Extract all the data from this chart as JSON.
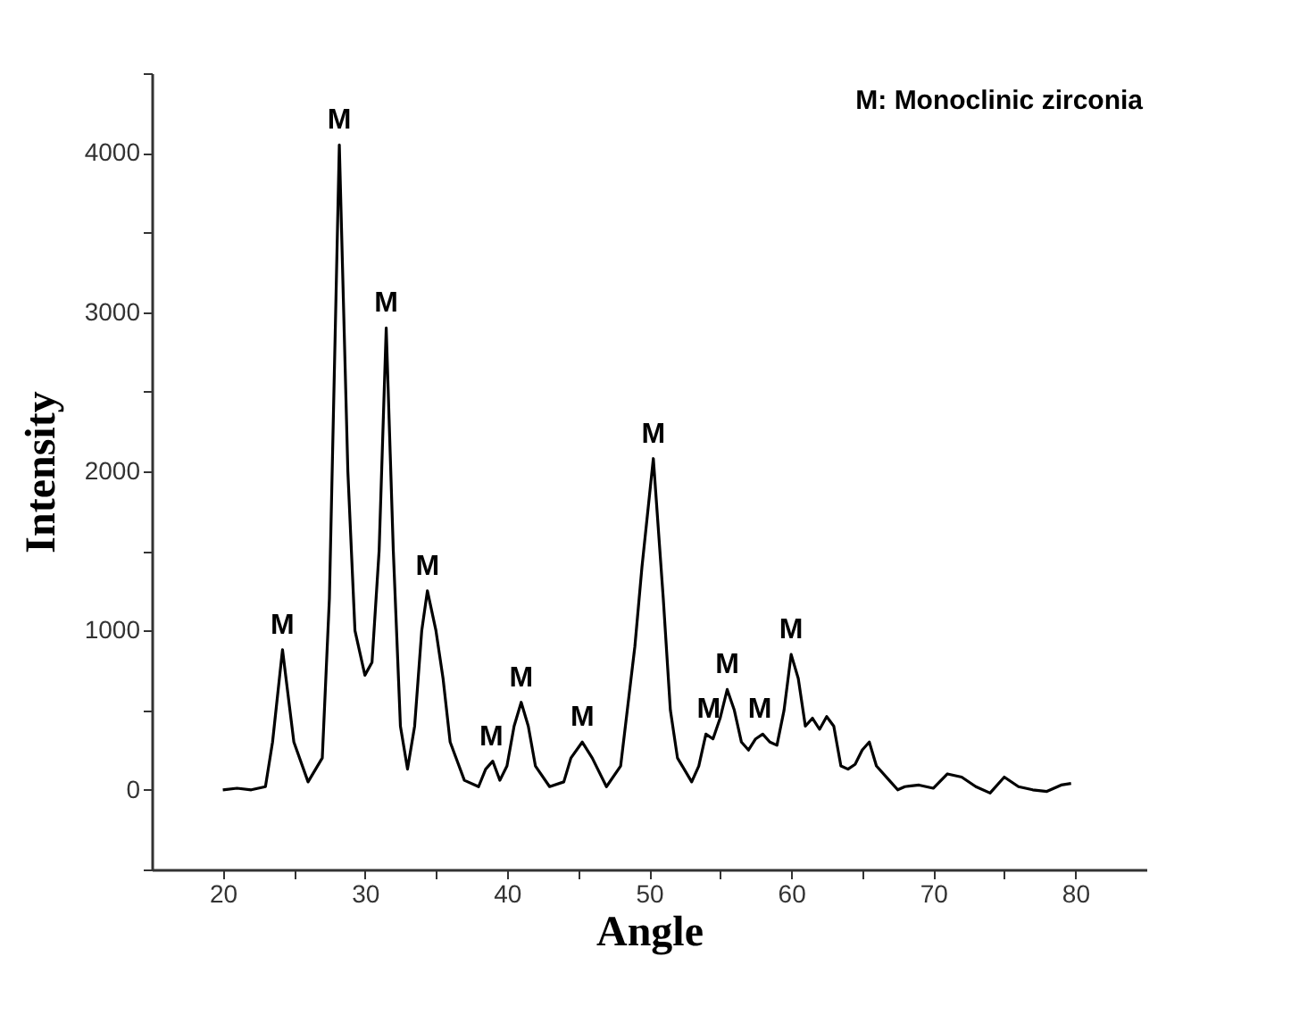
{
  "chart_data": {
    "type": "line",
    "xlabel": "Angle",
    "ylabel": "Intensity",
    "x": [
      20,
      21,
      22,
      23,
      23.5,
      24.2,
      25,
      26,
      27,
      27.5,
      28.2,
      28.8,
      29.3,
      30,
      30.5,
      31,
      31.5,
      32,
      32.5,
      33,
      33.5,
      34,
      34.4,
      35,
      35.5,
      36,
      37,
      38,
      38.5,
      39,
      39.5,
      40,
      40.5,
      41,
      41.5,
      42,
      43,
      44,
      44.5,
      45.3,
      46,
      47,
      48,
      49,
      49.5,
      50.3,
      51,
      51.5,
      52,
      53,
      53.5,
      54,
      54.5,
      55,
      55.5,
      56,
      56.5,
      57,
      57.5,
      58,
      58.5,
      59,
      59.5,
      60,
      60.5,
      61,
      61.5,
      62,
      62.5,
      63,
      63.5,
      64,
      64.5,
      65,
      65.5,
      66,
      67,
      67.5,
      68,
      69,
      70,
      71,
      72,
      73,
      74,
      75,
      76,
      77,
      78,
      79,
      79.7
    ],
    "series": [
      {
        "color": "#000000",
        "values": [
          0,
          10,
          0,
          20,
          300,
          880,
          300,
          50,
          200,
          1200,
          4050,
          2000,
          1000,
          720,
          800,
          1500,
          2900,
          1500,
          400,
          130,
          400,
          1000,
          1250,
          1000,
          700,
          300,
          60,
          20,
          130,
          180,
          60,
          150,
          400,
          550,
          400,
          150,
          20,
          50,
          200,
          300,
          200,
          20,
          150,
          900,
          1400,
          2080,
          1200,
          500,
          200,
          50,
          150,
          350,
          320,
          450,
          630,
          500,
          300,
          250,
          320,
          350,
          300,
          280,
          500,
          850,
          700,
          400,
          450,
          380,
          460,
          400,
          150,
          130,
          160,
          250,
          300,
          150,
          50,
          0,
          20,
          30,
          10,
          100,
          80,
          20,
          -20,
          80,
          20,
          0,
          -10,
          30,
          40
        ]
      }
    ],
    "xlim": [
      15,
      85
    ],
    "ylim": [
      -500,
      4500
    ],
    "xticks": [
      20,
      {
        "value": 25,
        "label": null
      },
      30,
      {
        "value": 35,
        "label": null
      },
      40,
      {
        "value": 45,
        "label": null
      },
      50,
      {
        "value": 55,
        "label": null
      },
      60,
      {
        "value": 65,
        "label": null
      },
      70,
      {
        "value": 75,
        "label": null
      },
      80
    ],
    "yticks": [
      {
        "value": -500,
        "label": null
      },
      0,
      {
        "value": 500,
        "label": null
      },
      1000,
      {
        "value": 1500,
        "label": null
      },
      2000,
      {
        "value": 2500,
        "label": null
      },
      3000,
      {
        "value": 3500,
        "label": null
      },
      4000,
      {
        "value": 4500,
        "label": null
      }
    ],
    "grid": false,
    "legend": false,
    "marker": "none",
    "line_style": "solid",
    "annotations": [
      "M: Monoclinic zirconia",
      {
        "text": "M",
        "x": 24.2,
        "y": 880
      },
      {
        "text": "M",
        "x": 28.2,
        "y": 4050
      },
      {
        "text": "M",
        "x": 31.5,
        "y": 2900
      },
      {
        "text": "M",
        "x": 34.4,
        "y": 1250
      },
      {
        "text": "M",
        "x": 38.9,
        "y": 180
      },
      {
        "text": "M",
        "x": 41,
        "y": 550
      },
      {
        "text": "M",
        "x": 45.3,
        "y": 300
      },
      {
        "text": "M",
        "x": 50.3,
        "y": 2080
      },
      {
        "text": "M",
        "x": 54.2,
        "y": 350
      },
      {
        "text": "M",
        "x": 55.5,
        "y": 630
      },
      {
        "text": "M",
        "x": 57.8,
        "y": 350
      },
      {
        "text": "M",
        "x": 60,
        "y": 850
      }
    ]
  }
}
